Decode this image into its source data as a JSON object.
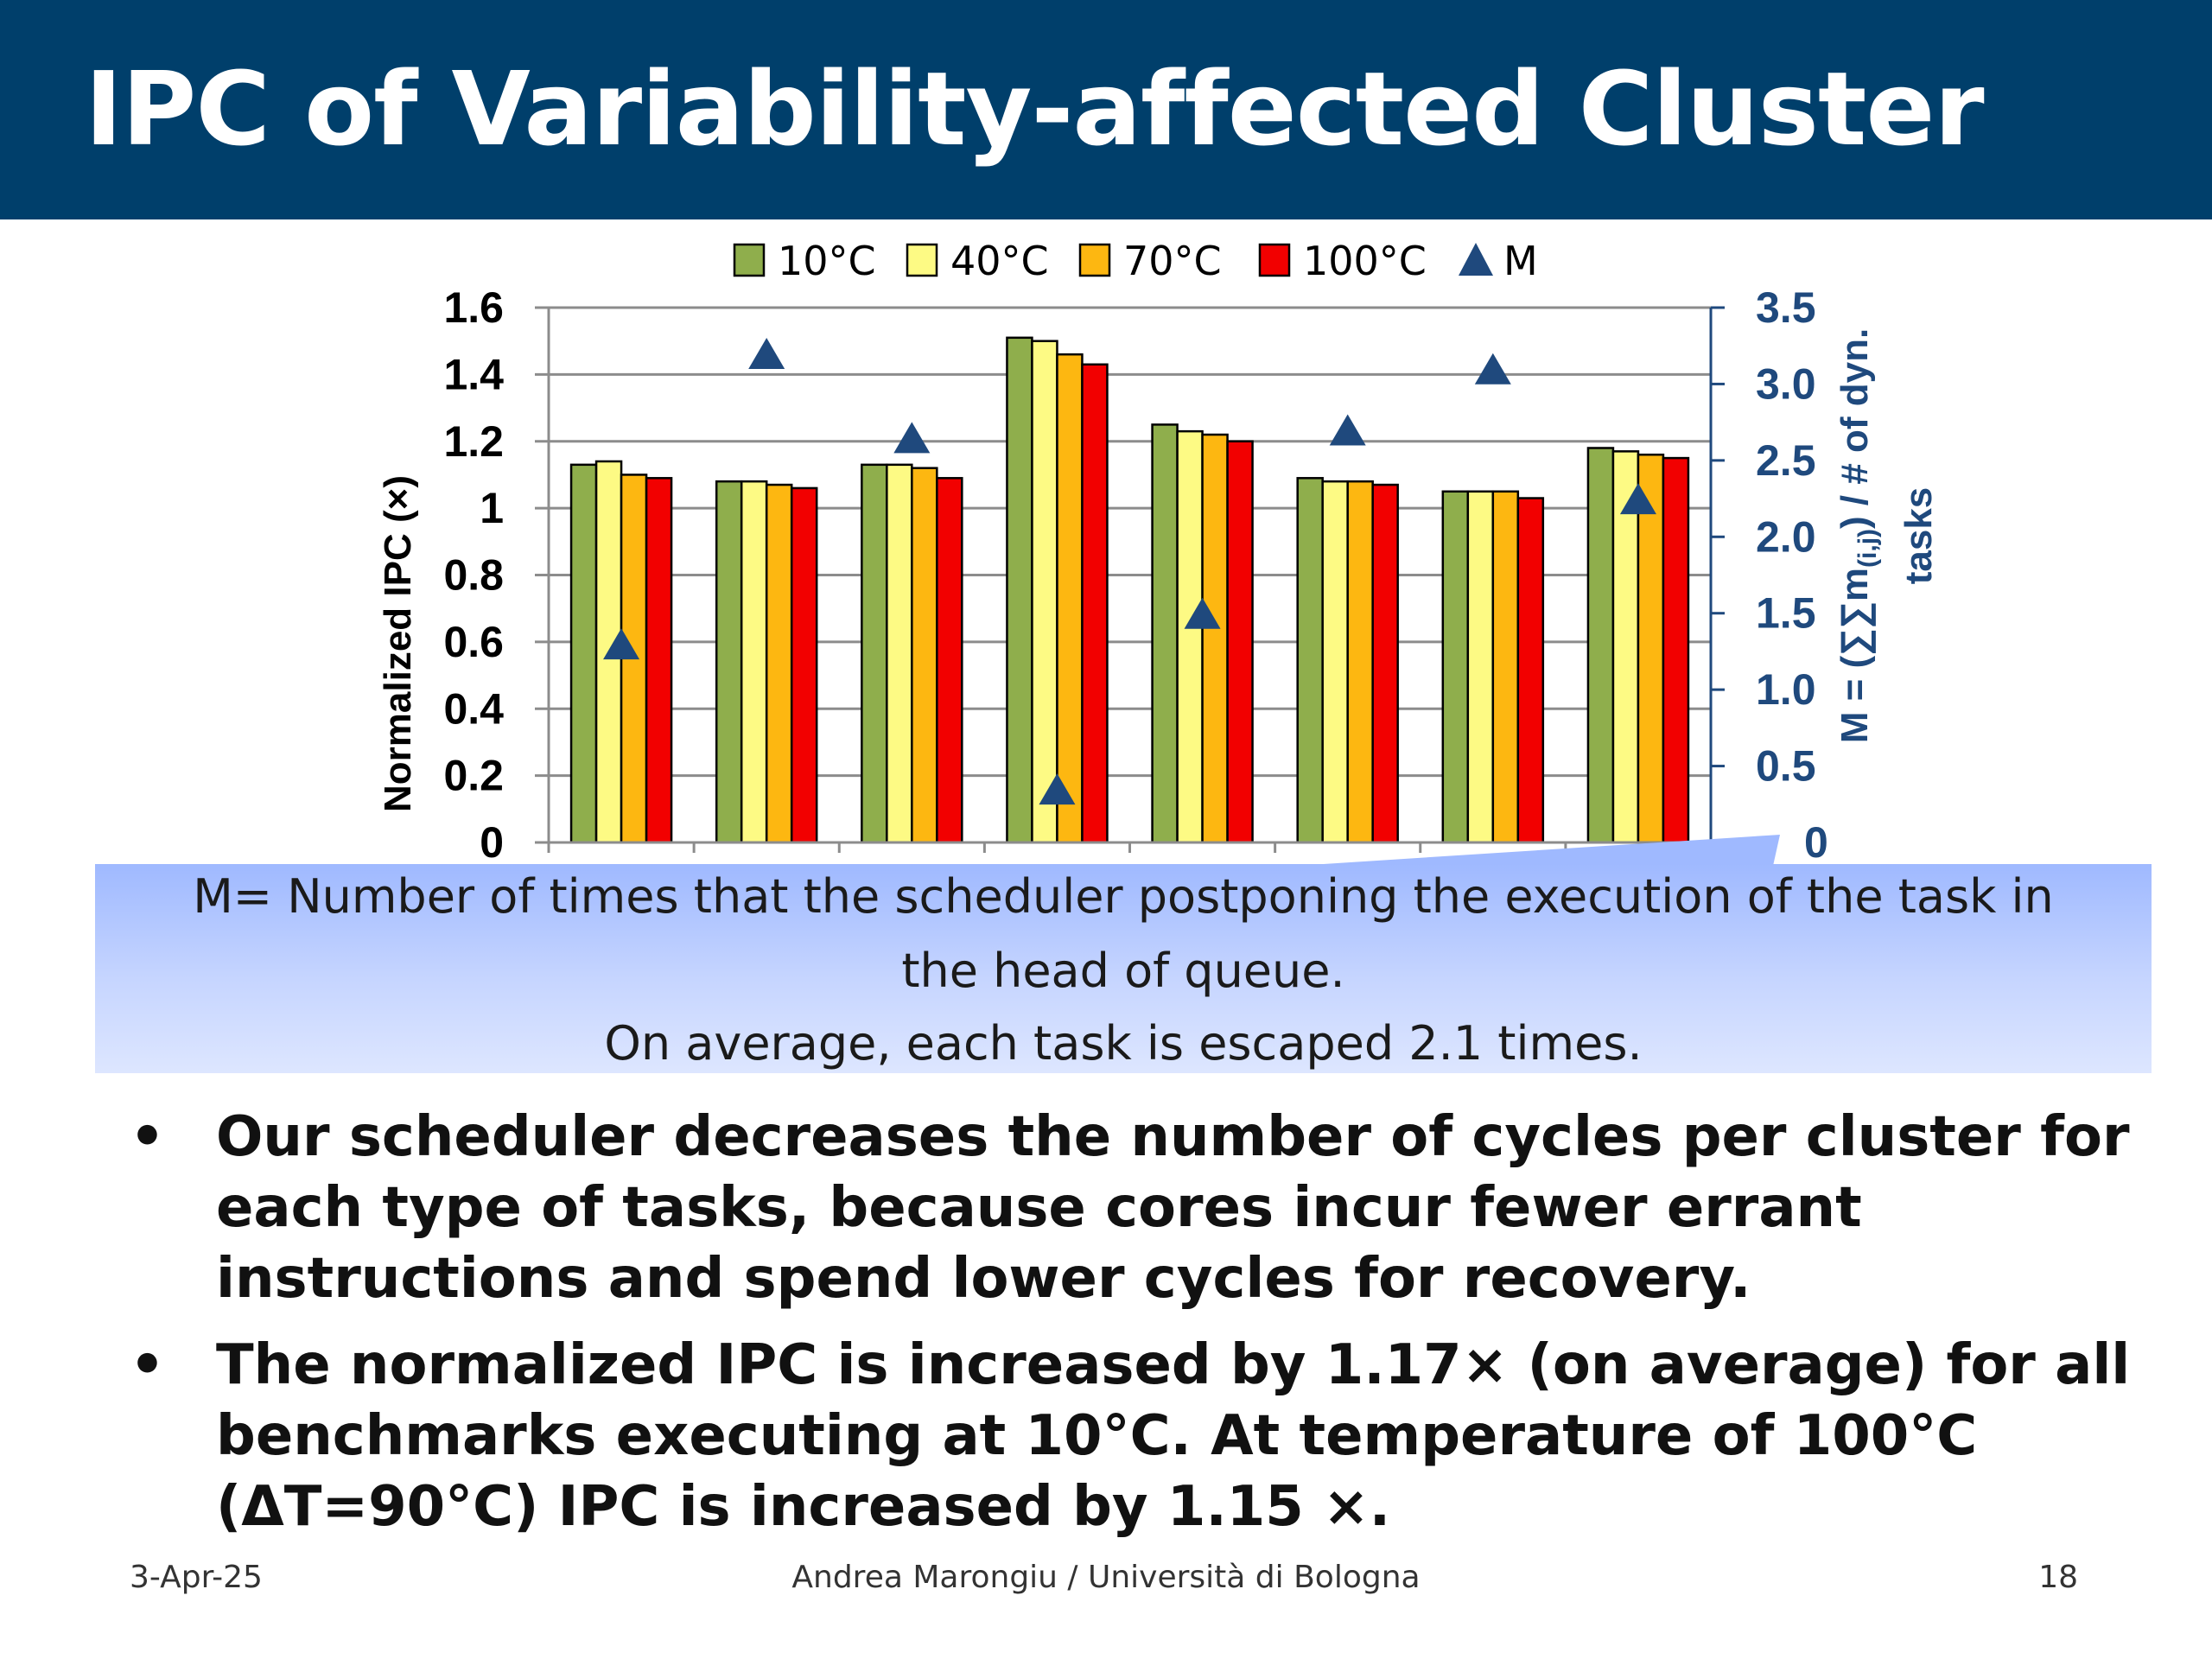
{
  "slide": {
    "title": "IPC of Variability-affected Cluster",
    "callout": {
      "line1": "M= Number of times that the scheduler postponing the execution of the task in",
      "line2": "the head of queue.",
      "line3": "On average, each task is escaped 2.1 times."
    },
    "bullets": [
      "Our scheduler decreases the number of cycles per cluster for each type of tasks, because cores incur fewer errant instructions and spend lower cycles for recovery.",
      "The normalized IPC is increased by 1.17× (on average) for all benchmarks executing at 10°C. At temperature of 100°C (ΔT=90°C) IPC is increased by 1.15 ×."
    ],
    "bullet_symbol": "•",
    "footer": {
      "date": "3-Apr-25",
      "author": "Andrea Marongiu / Università di Bologna",
      "page": "18"
    }
  },
  "chart_data": {
    "type": "bar",
    "categories": [
      "",
      "",
      "",
      "",
      "",
      "",
      "",
      ""
    ],
    "series": [
      {
        "name": "10°C",
        "color": "#8fae4c",
        "values": [
          1.13,
          1.08,
          1.13,
          1.51,
          1.25,
          1.09,
          1.05,
          1.18
        ]
      },
      {
        "name": "40°C",
        "color": "#fdfa84",
        "values": [
          1.14,
          1.08,
          1.13,
          1.5,
          1.23,
          1.08,
          1.05,
          1.17
        ]
      },
      {
        "name": "70°C",
        "color": "#fdb711",
        "values": [
          1.1,
          1.07,
          1.12,
          1.46,
          1.22,
          1.08,
          1.05,
          1.16
        ]
      },
      {
        "name": "100°C",
        "color": "#f20000",
        "values": [
          1.09,
          1.06,
          1.09,
          1.43,
          1.2,
          1.07,
          1.03,
          1.15
        ]
      },
      {
        "name": "M",
        "type": "scatter",
        "axis": "right",
        "marker": "triangle",
        "color": "#1f497d",
        "values": [
          1.3,
          3.2,
          2.65,
          0.35,
          1.5,
          2.7,
          3.1,
          2.25
        ]
      }
    ],
    "ylabel": "Normalized IPC (×)",
    "ylim": [
      0,
      1.6
    ],
    "yticks": [
      "0",
      "0.2",
      "0.4",
      "0.6",
      "0.8",
      "1",
      "1.2",
      "1.4",
      "1.6"
    ],
    "y2label_line1_prefix": "M = (∑∑m",
    "y2label_line1_sub": "(i,j)",
    "y2label_line1_suffix": ") / # of dyn.",
    "y2label_line2": "tasks",
    "y2lim": [
      0,
      3.5
    ],
    "y2ticks": [
      "0.5",
      "1.0",
      "1.5",
      "2.0",
      "2.5",
      "3.0",
      "3.5"
    ],
    "y2_partial_zero": "0",
    "grid": true,
    "legend_position": "top-center"
  }
}
